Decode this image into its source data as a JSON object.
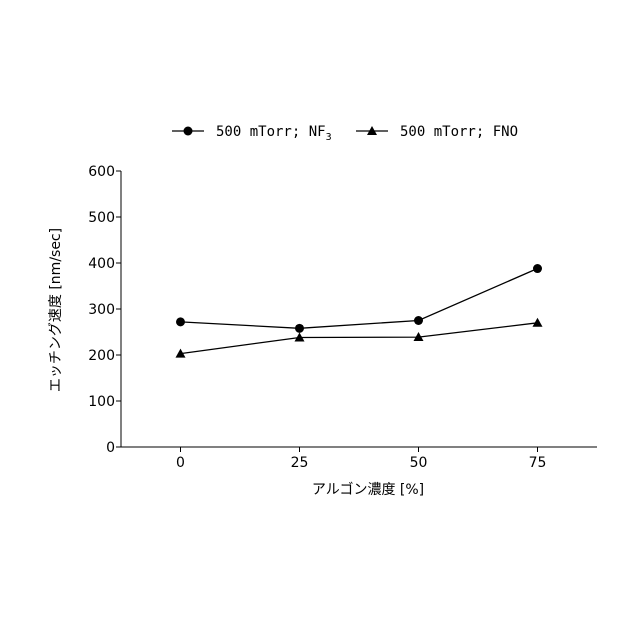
{
  "chart_data": {
    "type": "line",
    "x": [
      0,
      25,
      50,
      75
    ],
    "xticks": [
      "0",
      "25",
      "50",
      "75"
    ],
    "yticks": [
      "0",
      "100",
      "200",
      "300",
      "400",
      "500",
      "600"
    ],
    "xlim": [
      -12.5,
      87.5
    ],
    "ylim": [
      0,
      600
    ],
    "xlabel": "アルゴン濃度 [%]",
    "ylabel": "エッチング速度 [nm/sec]",
    "legend_position": "top",
    "grid": false,
    "series": [
      {
        "name": "500 mTorr; NF",
        "name_sub": "3",
        "marker": "circle",
        "color": "#000000",
        "values": [
          272,
          258,
          275,
          388
        ]
      },
      {
        "name": "500 mTorr; FNO",
        "marker": "triangle",
        "color": "#000000",
        "values": [
          203,
          238,
          239,
          270
        ]
      }
    ]
  }
}
